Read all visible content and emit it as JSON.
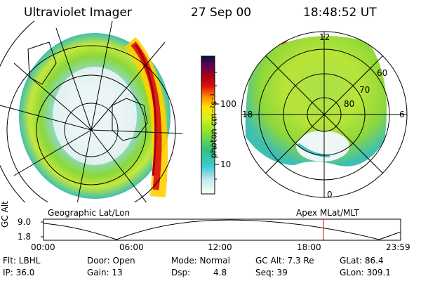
{
  "header": {
    "title": "Ultraviolet Imager",
    "date": "27 Sep 00",
    "time": "18:48:52 UT"
  },
  "colorbar": {
    "label": "photon cm⁻²s⁻¹",
    "ticks": [
      "100",
      "10"
    ]
  },
  "left_panel": {
    "caption": "Geographic Lat/Lon"
  },
  "right_panel": {
    "caption": "Apex MLat/MLT",
    "mlt_labels": {
      "top": "12",
      "left": "18",
      "right": "6",
      "bottom": "0"
    },
    "mlat_labels": [
      "60",
      "70",
      "80"
    ]
  },
  "timeline": {
    "axis_label": "GC Alt",
    "y_ticks": [
      "9.0",
      "1.8"
    ],
    "x_ticks": [
      "00:00",
      "06:00",
      "12:00",
      "18:00",
      "23:59"
    ],
    "current_time_fraction": 0.784
  },
  "status": {
    "flt": "Flt: LBHL",
    "ip": "IP: 36.0",
    "door": "Door: Open",
    "gain": "Gain: 13",
    "mode": "Mode: Normal",
    "dsp_label": "Dsp:",
    "dsp_value": "4.8",
    "gc_alt": "GC Alt: 7.3 Re",
    "seq": "Seq: 39",
    "glat": "GLat:  86.4",
    "glon": "GLon: 309.1"
  },
  "colors": {
    "line": "#000000",
    "marker": "#cc0000",
    "low": "#22c3b0",
    "mid": "#9adf32",
    "high": "#ffe000",
    "peak": "#b80000"
  }
}
